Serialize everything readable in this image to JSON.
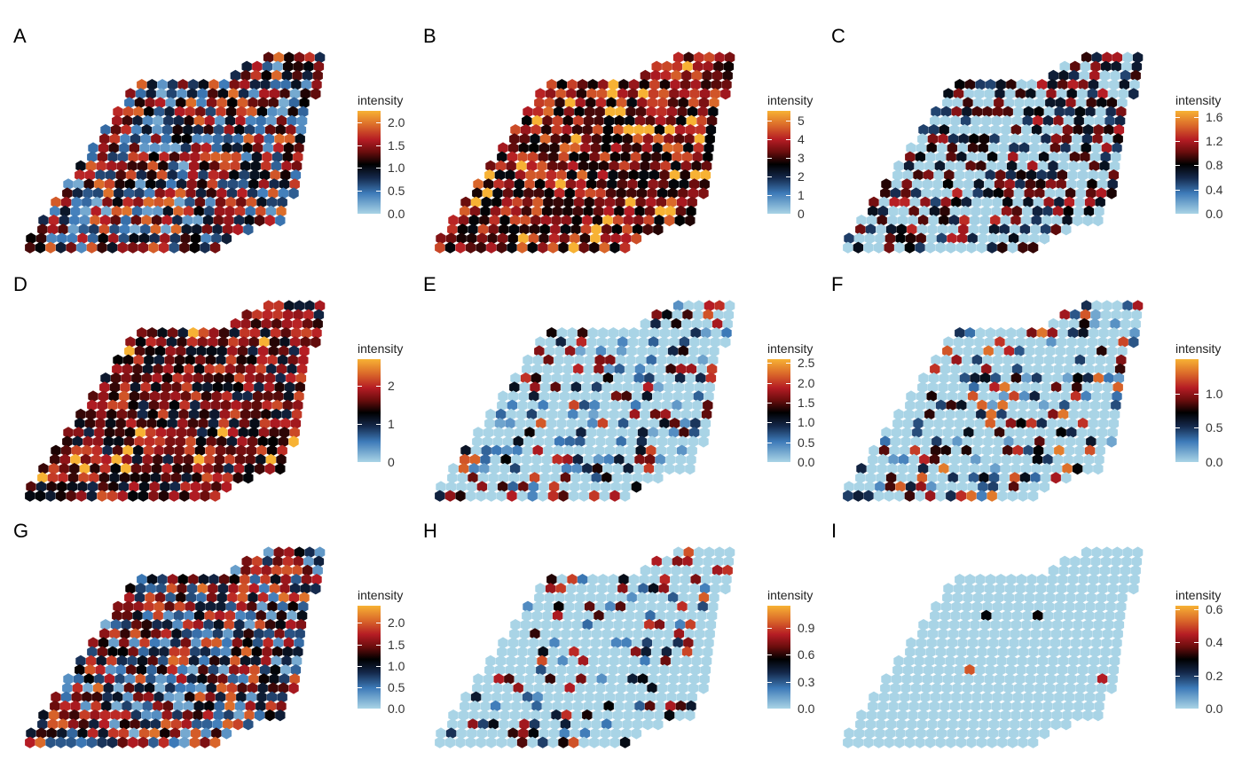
{
  "chart_data": [
    {
      "type": "heatmap",
      "panel": "A",
      "legend_title": "intensity",
      "ticks": [
        "0.0",
        "0.5",
        "1.0",
        "1.5",
        "2.0"
      ],
      "range": [
        0,
        2.25
      ],
      "pattern": "mixed"
    },
    {
      "type": "heatmap",
      "panel": "B",
      "legend_title": "intensity",
      "ticks": [
        "0",
        "1",
        "2",
        "3",
        "4",
        "5"
      ],
      "range": [
        0,
        5.5
      ],
      "pattern": "high"
    },
    {
      "type": "heatmap",
      "panel": "C",
      "legend_title": "intensity",
      "ticks": [
        "0.0",
        "0.4",
        "0.8",
        "1.2",
        "1.6"
      ],
      "range": [
        0,
        1.7
      ],
      "pattern": "lowmid"
    },
    {
      "type": "heatmap",
      "panel": "D",
      "legend_title": "intensity",
      "ticks": [
        "0",
        "1",
        "2"
      ],
      "range": [
        0,
        2.7
      ],
      "pattern": "highmid"
    },
    {
      "type": "heatmap",
      "panel": "E",
      "legend_title": "intensity",
      "ticks": [
        "0.0",
        "0.5",
        "1.0",
        "1.5",
        "2.0",
        "2.5"
      ],
      "range": [
        0,
        2.6
      ],
      "pattern": "low"
    },
    {
      "type": "heatmap",
      "panel": "F",
      "legend_title": "intensity",
      "ticks": [
        "0.0",
        "0.5",
        "1.0"
      ],
      "range": [
        0,
        1.5
      ],
      "pattern": "low"
    },
    {
      "type": "heatmap",
      "panel": "G",
      "legend_title": "intensity",
      "ticks": [
        "0.0",
        "0.5",
        "1.0",
        "1.5",
        "2.0"
      ],
      "range": [
        0,
        2.4
      ],
      "pattern": "mixed"
    },
    {
      "type": "heatmap",
      "panel": "H",
      "legend_title": "intensity",
      "ticks": [
        "0.0",
        "0.3",
        "0.6",
        "0.9"
      ],
      "range": [
        0,
        1.15
      ],
      "pattern": "sparse"
    },
    {
      "type": "heatmap",
      "panel": "I",
      "legend_title": "intensity",
      "ticks": [
        "0.0",
        "0.2",
        "0.4",
        "0.6"
      ],
      "range": [
        0,
        0.62
      ],
      "pattern": "verysparse"
    }
  ],
  "colors": {
    "low": "#a9d4e6",
    "mid_low": "#3d7ab8",
    "mid": "#000000",
    "mid_high": "#b51c24",
    "high": "#f7b234"
  }
}
